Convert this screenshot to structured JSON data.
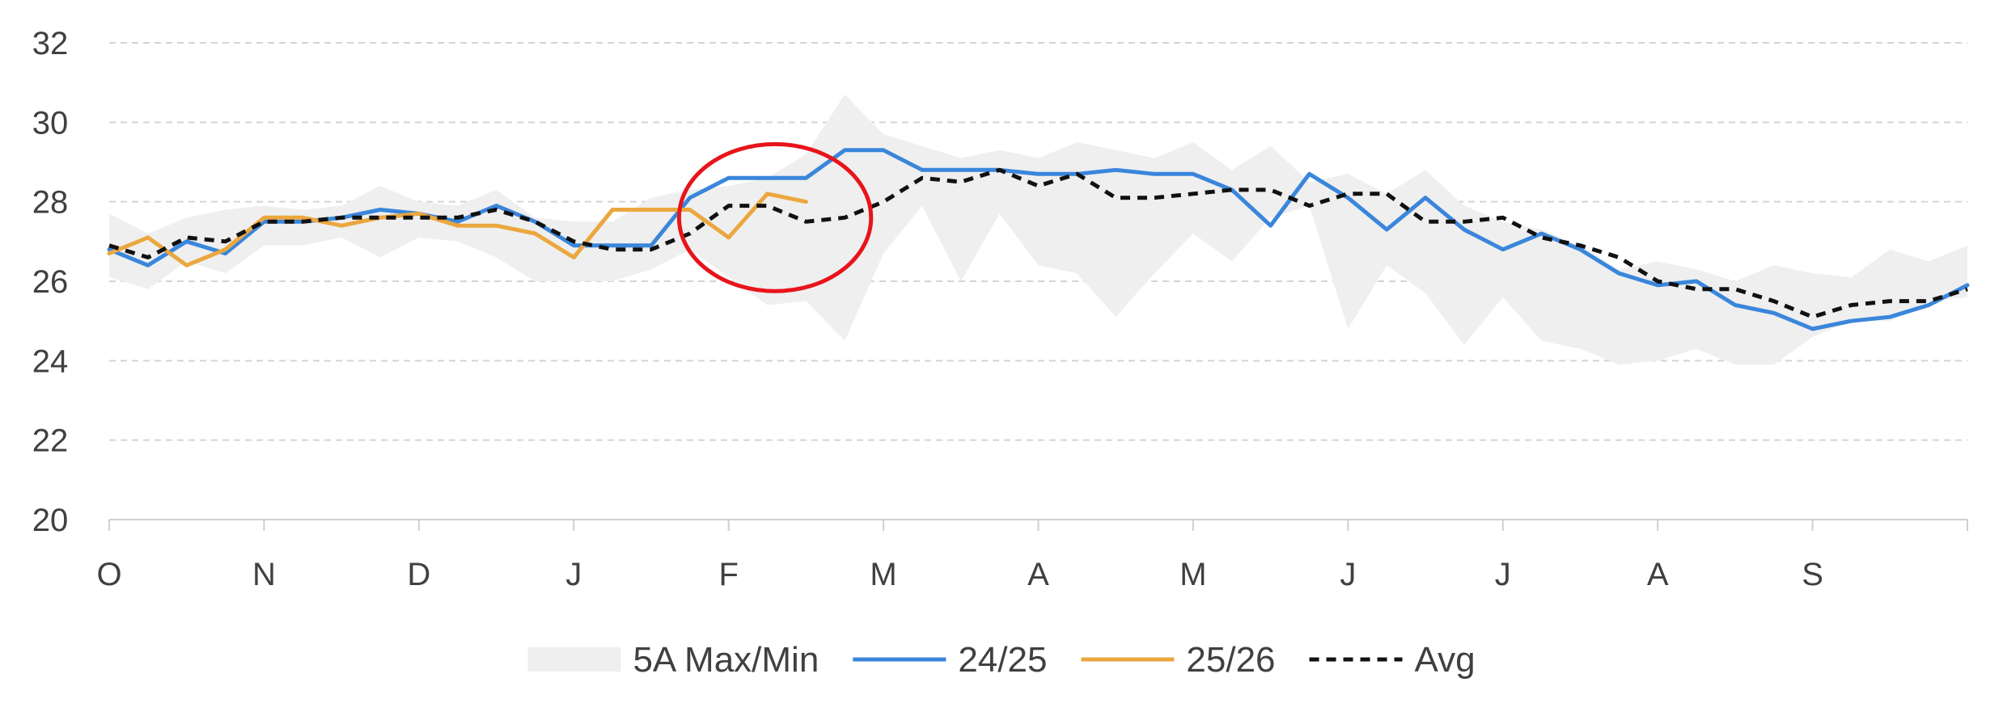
{
  "chart_data": {
    "type": "line",
    "title": "",
    "xlabel": "",
    "ylabel": "",
    "ylim": [
      20,
      32
    ],
    "yticks": [
      20,
      22,
      24,
      26,
      28,
      30,
      32
    ],
    "grid": true,
    "legend_position": "bottom",
    "x_domain": [
      0,
      12
    ],
    "categories": [
      "O",
      "N",
      "D",
      "J",
      "F",
      "M",
      "A",
      "M",
      "J",
      "J",
      "A",
      "S"
    ],
    "range": {
      "name": "5A Max/Min",
      "color": "#efefef",
      "x": [
        0,
        0.25,
        0.5,
        0.75,
        1,
        1.25,
        1.5,
        1.75,
        2,
        2.25,
        2.5,
        2.75,
        3,
        3.25,
        3.5,
        3.75,
        4,
        4.25,
        4.5,
        4.75,
        5,
        5.25,
        5.5,
        5.75,
        6,
        6.25,
        6.5,
        6.75,
        7,
        7.25,
        7.5,
        7.75,
        8,
        8.25,
        8.5,
        8.75,
        9,
        9.25,
        9.5,
        9.75,
        10,
        10.25,
        10.5,
        10.75,
        11,
        11.25,
        11.5,
        11.75,
        12
      ],
      "max": [
        27.7,
        27.2,
        27.6,
        27.8,
        27.9,
        27.8,
        27.9,
        28.4,
        28.0,
        27.9,
        28.3,
        27.6,
        27.5,
        27.5,
        28.1,
        28.3,
        28.4,
        28.6,
        29.2,
        30.7,
        29.7,
        29.4,
        29.1,
        29.3,
        29.1,
        29.5,
        29.3,
        29.1,
        29.5,
        28.8,
        29.4,
        28.5,
        28.7,
        28.2,
        28.8,
        27.9,
        27.5,
        27.3,
        26.9,
        26.3,
        26.5,
        26.3,
        26.0,
        26.4,
        26.2,
        26.1,
        26.8,
        26.5,
        26.9
      ],
      "min": [
        26.1,
        25.8,
        26.5,
        26.2,
        26.9,
        26.9,
        27.1,
        26.6,
        27.1,
        27.0,
        26.6,
        26.0,
        26.0,
        26.0,
        26.3,
        26.8,
        26.1,
        25.4,
        25.5,
        24.5,
        26.7,
        27.9,
        26.0,
        27.7,
        26.4,
        26.2,
        25.1,
        26.2,
        27.2,
        26.5,
        27.6,
        27.9,
        24.8,
        26.4,
        25.7,
        24.4,
        25.6,
        24.5,
        24.3,
        23.9,
        24.0,
        24.3,
        23.9,
        23.9,
        24.6,
        25.0,
        25.0,
        25.5,
        25.6
      ]
    },
    "series": [
      {
        "name": "24/25",
        "color": "#3a86db",
        "dash": "",
        "x": [
          0,
          0.25,
          0.5,
          0.75,
          1,
          1.25,
          1.5,
          1.75,
          2,
          2.25,
          2.5,
          2.75,
          3,
          3.25,
          3.5,
          3.75,
          4,
          4.25,
          4.5,
          4.75,
          5,
          5.25,
          5.5,
          5.75,
          6,
          6.25,
          6.5,
          6.75,
          7,
          7.25,
          7.5,
          7.75,
          8,
          8.25,
          8.5,
          8.75,
          9,
          9.25,
          9.5,
          9.75,
          10,
          10.25,
          10.5,
          10.75,
          11,
          11.25,
          11.5,
          11.75,
          12
        ],
        "values": [
          26.8,
          26.4,
          27.0,
          26.7,
          27.5,
          27.5,
          27.6,
          27.8,
          27.7,
          27.5,
          27.9,
          27.5,
          26.9,
          26.9,
          26.9,
          28.1,
          28.6,
          28.6,
          28.6,
          29.3,
          29.3,
          28.8,
          28.8,
          28.8,
          28.7,
          28.7,
          28.8,
          28.7,
          28.7,
          28.3,
          27.4,
          28.7,
          28.1,
          27.3,
          28.1,
          27.3,
          26.8,
          27.2,
          26.8,
          26.2,
          25.9,
          26.0,
          25.4,
          25.2,
          24.8,
          25.0,
          25.1,
          25.4,
          25.9
        ]
      },
      {
        "name": "25/26",
        "color": "#eba73f",
        "dash": "",
        "x": [
          0,
          0.25,
          0.5,
          0.75,
          1,
          1.25,
          1.5,
          1.75,
          2,
          2.25,
          2.5,
          2.75,
          3,
          3.25,
          3.5,
          3.75,
          4,
          4.25,
          4.5
        ],
        "values": [
          26.7,
          27.1,
          26.4,
          26.8,
          27.6,
          27.6,
          27.4,
          27.6,
          27.7,
          27.4,
          27.4,
          27.2,
          26.6,
          27.8,
          27.8,
          27.8,
          27.1,
          28.2,
          28.0
        ]
      },
      {
        "name": "Avg",
        "color": "#111111",
        "dash": "12,9",
        "x": [
          0,
          0.25,
          0.5,
          0.75,
          1,
          1.25,
          1.5,
          1.75,
          2,
          2.25,
          2.5,
          2.75,
          3,
          3.25,
          3.5,
          3.75,
          4,
          4.25,
          4.5,
          4.75,
          5,
          5.25,
          5.5,
          5.75,
          6,
          6.25,
          6.5,
          6.75,
          7,
          7.25,
          7.5,
          7.75,
          8,
          8.25,
          8.5,
          8.75,
          9,
          9.25,
          9.5,
          9.75,
          10,
          10.25,
          10.5,
          10.75,
          11,
          11.25,
          11.5,
          11.75,
          12
        ],
        "values": [
          26.9,
          26.6,
          27.1,
          27.0,
          27.5,
          27.5,
          27.6,
          27.6,
          27.6,
          27.6,
          27.8,
          27.5,
          27.0,
          26.8,
          26.8,
          27.2,
          27.9,
          27.9,
          27.5,
          27.6,
          28.0,
          28.6,
          28.5,
          28.8,
          28.4,
          28.7,
          28.1,
          28.1,
          28.2,
          28.3,
          28.3,
          27.9,
          28.2,
          28.2,
          27.5,
          27.5,
          27.6,
          27.1,
          26.9,
          26.6,
          26.0,
          25.8,
          25.8,
          25.5,
          25.1,
          25.4,
          25.5,
          25.5,
          25.8
        ]
      }
    ],
    "annotations": [
      {
        "type": "ellipse",
        "color": "#e8141b",
        "cx": 4.3,
        "cy": 27.6,
        "rx": 0.62,
        "ry": 1.85
      }
    ],
    "legend": [
      {
        "name": "5A Max/Min",
        "kind": "area",
        "color": "#efefef"
      },
      {
        "name": "24/25",
        "kind": "line",
        "color": "#3a86db"
      },
      {
        "name": "25/26",
        "kind": "line",
        "color": "#eba73f"
      },
      {
        "name": "Avg",
        "kind": "dashed",
        "color": "#111111"
      }
    ]
  }
}
